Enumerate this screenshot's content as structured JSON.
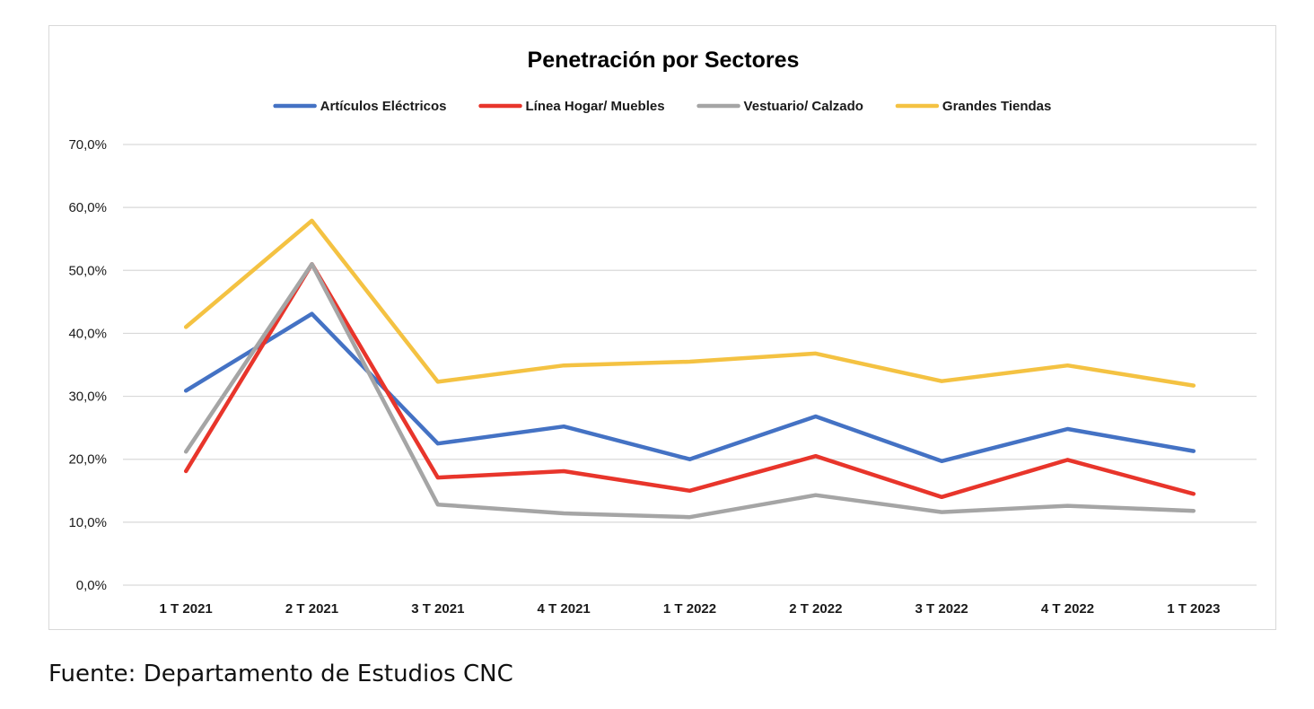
{
  "source": "Fuente: Departamento de Estudios CNC",
  "chart_data": {
    "type": "line",
    "title": "Penetración por Sectores",
    "xlabel": "",
    "ylabel": "",
    "categories": [
      "1 T 2021",
      "2 T 2021",
      "3 T 2021",
      "4 T 2021",
      "1 T 2022",
      "2 T 2022",
      "3 T 2022",
      "4 T 2022",
      "1 T 2023"
    ],
    "ylim": [
      0,
      70
    ],
    "yticks": [
      0,
      10,
      20,
      30,
      40,
      50,
      60,
      70
    ],
    "ytick_labels": [
      "0,0%",
      "10,0%",
      "20,0%",
      "30,0%",
      "40,0%",
      "50,0%",
      "60,0%",
      "70,0%"
    ],
    "grid": true,
    "legend_position": "top",
    "series": [
      {
        "name": "Artículos Eléctricos",
        "color": "#4472c4",
        "values": [
          30.9,
          43.1,
          22.5,
          25.2,
          20.0,
          26.8,
          19.7,
          24.8,
          21.3
        ]
      },
      {
        "name": "Línea Hogar/ Muebles",
        "color": "#e8352b",
        "values": [
          18.1,
          51.0,
          17.1,
          18.1,
          15.0,
          20.5,
          14.0,
          19.9,
          14.5
        ]
      },
      {
        "name": "Vestuario/ Calzado",
        "color": "#a5a5a5",
        "values": [
          21.2,
          51.0,
          12.8,
          11.4,
          10.8,
          14.3,
          11.6,
          12.6,
          11.8
        ]
      },
      {
        "name": "Grandes Tiendas",
        "color": "#f4c242",
        "values": [
          41.0,
          57.9,
          32.3,
          34.9,
          35.5,
          36.8,
          32.4,
          34.9,
          31.7
        ]
      }
    ]
  }
}
